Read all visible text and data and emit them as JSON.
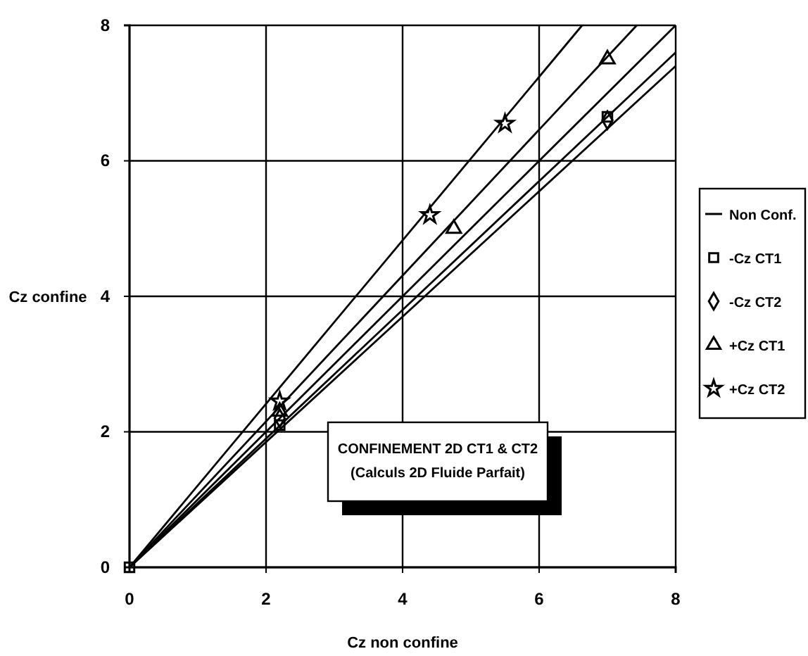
{
  "chart_data": {
    "type": "scatter",
    "xlabel": "Cz non confine",
    "ylabel": "Cz confine",
    "xlim": [
      0,
      8
    ],
    "ylim": [
      0,
      8
    ],
    "xticks": [
      0,
      2,
      4,
      6,
      8
    ],
    "yticks": [
      0,
      2,
      4,
      6,
      8
    ],
    "grid": true,
    "legend": "right",
    "annotations": [
      "CONFINEMENT 2D CT1 & CT2",
      "(Calculs 2D Fluide Parfait)"
    ],
    "series": [
      {
        "name": "Non Conf.",
        "type": "line",
        "color": "#000000",
        "marker": "none",
        "x": [
          0,
          8
        ],
        "values": [
          0,
          8
        ]
      },
      {
        "name": "-Cz CT1",
        "color": "#000000",
        "marker": "square",
        "x": [
          0,
          2.2,
          7
        ],
        "values": [
          0,
          2.1,
          6.65
        ]
      },
      {
        "name": "-Cz CT2",
        "color": "#000000",
        "marker": "diamond",
        "x": [
          2.2,
          7
        ],
        "values": [
          2.2,
          6.6
        ]
      },
      {
        "name": "+Cz CT1",
        "color": "#000000",
        "marker": "triangle",
        "x": [
          2.2,
          4.75,
          7
        ],
        "values": [
          2.3,
          5.0,
          7.5
        ]
      },
      {
        "name": "+Cz CT2",
        "color": "#000000",
        "marker": "star",
        "x": [
          2.2,
          4.4,
          5.5
        ],
        "values": [
          2.45,
          5.2,
          6.55
        ]
      },
      {
        "type": "line",
        "color": "#000000",
        "x": [
          0,
          8
        ],
        "values": [
          0,
          7.4
        ]
      },
      {
        "type": "line",
        "color": "#000000",
        "x": [
          0,
          8
        ],
        "values": [
          0,
          7.6
        ]
      },
      {
        "type": "line",
        "color": "#000000",
        "x": [
          0,
          7.43
        ],
        "values": [
          0,
          8
        ]
      },
      {
        "type": "line",
        "color": "#000000",
        "x": [
          0,
          6.63
        ],
        "values": [
          0,
          8
        ]
      }
    ]
  }
}
